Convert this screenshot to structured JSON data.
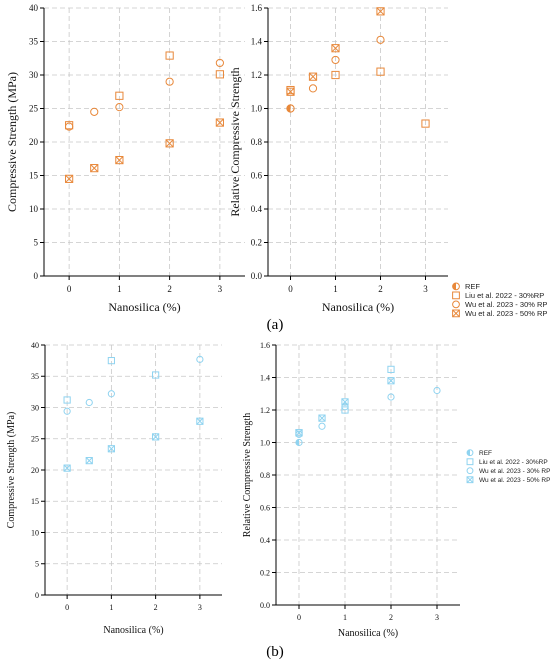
{
  "panel_labels": [
    "(a)",
    "(b)"
  ],
  "legend": [
    "REF",
    "Liu et al. 2022 - 30%RP",
    "Wu et al. 2023 - 30% RP",
    "Wu et al. 2023 - 50% RP"
  ],
  "colors": {
    "a": "#E8883A",
    "b": "#8FD3F0",
    "grid": "#c8c8c8",
    "axis": "#000000"
  },
  "chart_data": [
    {
      "id": "a-left",
      "type": "scatter",
      "xlabel": "Nanosilica (%)",
      "ylabel": "Compressive Strength (MPa)",
      "xlim": [
        -0.5,
        3.5
      ],
      "xticks": [
        0,
        1,
        2,
        3
      ],
      "ylim": [
        0,
        40
      ],
      "yticks": [
        0,
        5,
        10,
        15,
        20,
        25,
        30,
        35,
        40
      ],
      "grid": true,
      "series": [
        {
          "name": "Liu et al. 2022 - 30%RP",
          "marker": "square",
          "x": [
            0,
            1,
            2,
            3
          ],
          "y": [
            22.5,
            26.9,
            32.9,
            30.1
          ]
        },
        {
          "name": "Wu et al. 2023 - 30% RP",
          "marker": "circle",
          "x": [
            0,
            0.5,
            1,
            2,
            3
          ],
          "y": [
            22.3,
            24.5,
            25.2,
            29.0,
            31.8
          ]
        },
        {
          "name": "Wu et al. 2023 - 50% RP",
          "marker": "squarex",
          "x": [
            0,
            0.5,
            1,
            2,
            3
          ],
          "y": [
            14.5,
            16.1,
            17.3,
            19.8,
            22.9
          ]
        }
      ]
    },
    {
      "id": "a-right",
      "type": "scatter",
      "xlabel": "Nanosilica (%)",
      "ylabel": "Relative Compressive Strength",
      "xlim": [
        -0.5,
        3.5
      ],
      "xticks": [
        0,
        1,
        2,
        3
      ],
      "ylim": [
        0,
        1.6
      ],
      "yticks": [
        0.0,
        0.2,
        0.4,
        0.6,
        0.8,
        1.0,
        1.2,
        1.4,
        1.6
      ],
      "grid": true,
      "legend_position": "right",
      "series": [
        {
          "name": "REF",
          "marker": "halfcircle",
          "x": [
            0
          ],
          "y": [
            1.0
          ]
        },
        {
          "name": "Liu et al. 2022 - 30%RP",
          "marker": "square",
          "x": [
            0,
            1,
            2,
            3
          ],
          "y": [
            1.11,
            1.2,
            1.22,
            0.91
          ]
        },
        {
          "name": "Wu et al. 2023 - 30% RP",
          "marker": "circle",
          "x": [
            0,
            0.5,
            1,
            2
          ],
          "y": [
            1.0,
            1.12,
            1.29,
            1.41
          ]
        },
        {
          "name": "Wu et al. 2023 - 50% RP",
          "marker": "squarex",
          "x": [
            0,
            0.5,
            1,
            2
          ],
          "y": [
            1.1,
            1.19,
            1.36,
            1.58
          ]
        }
      ]
    },
    {
      "id": "b-left",
      "type": "scatter",
      "xlabel": "Nanosilica (%)",
      "ylabel": "Compressive Strength (MPa)",
      "xlim": [
        -0.5,
        3.5
      ],
      "xticks": [
        0,
        1,
        2,
        3
      ],
      "ylim": [
        0,
        40
      ],
      "yticks": [
        0,
        5,
        10,
        15,
        20,
        25,
        30,
        35,
        40
      ],
      "grid": true,
      "series": [
        {
          "name": "Liu et al. 2022 - 30%RP",
          "marker": "square",
          "x": [
            0,
            1,
            2
          ],
          "y": [
            31.2,
            37.5,
            35.2
          ]
        },
        {
          "name": "Wu et al. 2023 - 30% RP",
          "marker": "circle",
          "x": [
            0,
            0.5,
            1,
            3
          ],
          "y": [
            29.4,
            30.8,
            32.2,
            37.7
          ]
        },
        {
          "name": "Wu et al. 2023 - 50% RP",
          "marker": "squarex",
          "x": [
            0,
            0.5,
            1,
            2,
            3
          ],
          "y": [
            20.3,
            21.5,
            23.4,
            25.3,
            27.8
          ]
        }
      ]
    },
    {
      "id": "b-right",
      "type": "scatter",
      "xlabel": "Nanosilica (%)",
      "ylabel": "Relative Compressive Strength",
      "xlim": [
        -0.5,
        3.5
      ],
      "xticks": [
        0,
        1,
        2,
        3
      ],
      "ylim": [
        0,
        1.6
      ],
      "yticks": [
        0.0,
        0.2,
        0.4,
        0.6,
        0.8,
        1.0,
        1.2,
        1.4,
        1.6
      ],
      "grid": true,
      "legend_position": "right",
      "series": [
        {
          "name": "REF",
          "marker": "halfcircle",
          "x": [
            0
          ],
          "y": [
            1.0
          ]
        },
        {
          "name": "Liu et al. 2022 - 30%RP",
          "marker": "square",
          "x": [
            0,
            1,
            2
          ],
          "y": [
            1.06,
            1.2,
            1.45
          ]
        },
        {
          "name": "Wu et al. 2023 - 30% RP",
          "marker": "circle",
          "x": [
            0,
            0.5,
            1,
            2,
            3
          ],
          "y": [
            1.05,
            1.1,
            1.22,
            1.28,
            1.32
          ]
        },
        {
          "name": "Wu et al. 2023 - 50% RP",
          "marker": "squarex",
          "x": [
            0,
            0.5,
            1,
            2
          ],
          "y": [
            1.06,
            1.15,
            1.25,
            1.38
          ]
        }
      ]
    }
  ]
}
